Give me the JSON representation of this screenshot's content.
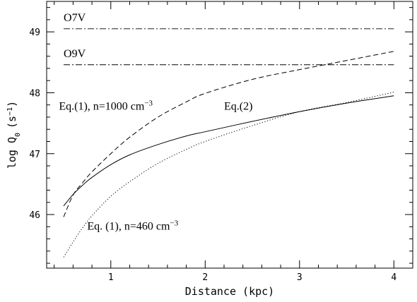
{
  "chart_data": {
    "type": "line",
    "title": "",
    "xlabel": "Distance (kpc)",
    "ylabel_main": "log Q",
    "ylabel_sub": "0",
    "ylabel_unit": "(s",
    "ylabel_unit_sup": "−1",
    "ylabel_unit_close": ")",
    "xlim": [
      0.32,
      4.2
    ],
    "ylim": [
      45.12,
      49.5
    ],
    "x_major_ticks": [
      1,
      2,
      3,
      4
    ],
    "y_major_ticks": [
      46,
      47,
      48,
      49
    ],
    "x_tick_labels": [
      "1",
      "2",
      "3",
      "4"
    ],
    "y_tick_labels": [
      "46",
      "47",
      "48",
      "49"
    ],
    "grid": false,
    "legend": "none",
    "series": [
      {
        "line_style": "dashed",
        "x": [
          0.5,
          0.6,
          0.7,
          0.8,
          1.0,
          1.2,
          1.5,
          1.8,
          2.0,
          2.5,
          3.0,
          3.5,
          4.0
        ],
        "y": [
          45.96,
          46.32,
          46.52,
          46.7,
          47.0,
          47.27,
          47.6,
          47.85,
          47.99,
          48.22,
          48.38,
          48.53,
          48.68
        ]
      },
      {
        "line_style": "solid",
        "x": [
          0.5,
          0.6,
          0.7,
          0.8,
          1.0,
          1.2,
          1.5,
          1.8,
          2.0,
          2.5,
          3.0,
          3.5,
          4.0
        ],
        "y": [
          46.14,
          46.33,
          46.48,
          46.61,
          46.82,
          46.98,
          47.15,
          47.29,
          47.36,
          47.53,
          47.69,
          47.83,
          47.95
        ]
      },
      {
        "line_style": "dotted",
        "x": [
          0.5,
          0.6,
          0.7,
          0.8,
          1.0,
          1.2,
          1.5,
          1.8,
          2.0,
          2.5,
          3.0,
          3.5,
          4.0
        ],
        "y": [
          45.3,
          45.55,
          45.78,
          45.98,
          46.3,
          46.54,
          46.84,
          47.07,
          47.2,
          47.46,
          47.69,
          47.84,
          48.01
        ]
      }
    ],
    "reference_lines": [
      {
        "label": "O7V",
        "y": 49.05,
        "line_style": "dash-dot",
        "x_range": [
          0.5,
          4.0
        ]
      },
      {
        "label": "O9V",
        "y": 48.46,
        "line_style": "dash-dot",
        "x_range": [
          0.5,
          4.0
        ]
      }
    ],
    "annotations": [
      {
        "base": "Eq.(1), n=1000 cm",
        "sup": "−3",
        "x": 0.45,
        "y": 47.72
      },
      {
        "base": "Eq.(2)",
        "sup": "",
        "x": 2.2,
        "y": 47.72
      },
      {
        "base": "Eq. (1), n=460 cm",
        "sup": "−3",
        "x": 0.75,
        "y": 45.75
      }
    ]
  }
}
